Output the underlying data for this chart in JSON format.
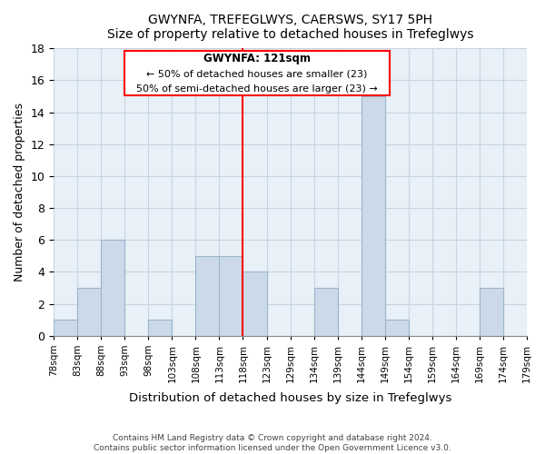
{
  "title": "GWYNFA, TREFEGLWYS, CAERSWS, SY17 5PH",
  "subtitle": "Size of property relative to detached houses in Trefeglwys",
  "xlabel": "Distribution of detached houses by size in Trefeglwys",
  "ylabel": "Number of detached properties",
  "bin_labels": [
    "78sqm",
    "83sqm",
    "88sqm",
    "93sqm",
    "98sqm",
    "103sqm",
    "108sqm",
    "113sqm",
    "118sqm",
    "123sqm",
    "129sqm",
    "134sqm",
    "139sqm",
    "144sqm",
    "149sqm",
    "154sqm",
    "159sqm",
    "164sqm",
    "169sqm",
    "174sqm",
    "179sqm"
  ],
  "bar_heights": [
    1,
    3,
    6,
    0,
    1,
    0,
    5,
    5,
    4,
    0,
    0,
    3,
    0,
    15,
    1,
    0,
    0,
    0,
    3,
    0
  ],
  "bar_color": "#ccd9e8",
  "bar_edgecolor": "#9ab5cc",
  "ylim": [
    0,
    18
  ],
  "yticks": [
    0,
    2,
    4,
    6,
    8,
    10,
    12,
    14,
    16,
    18
  ],
  "red_line_bin_index": 8,
  "annotation_title": "GWYNFA: 121sqm",
  "annotation_line1": "← 50% of detached houses are smaller (23)",
  "annotation_line2": "50% of semi-detached houses are larger (23) →",
  "footer_line1": "Contains HM Land Registry data © Crown copyright and database right 2024.",
  "footer_line2": "Contains public sector information licensed under the Open Government Licence v3.0.",
  "background_color": "#ffffff",
  "axes_background": "#e8f0f8",
  "grid_color": "#c8d4e0"
}
